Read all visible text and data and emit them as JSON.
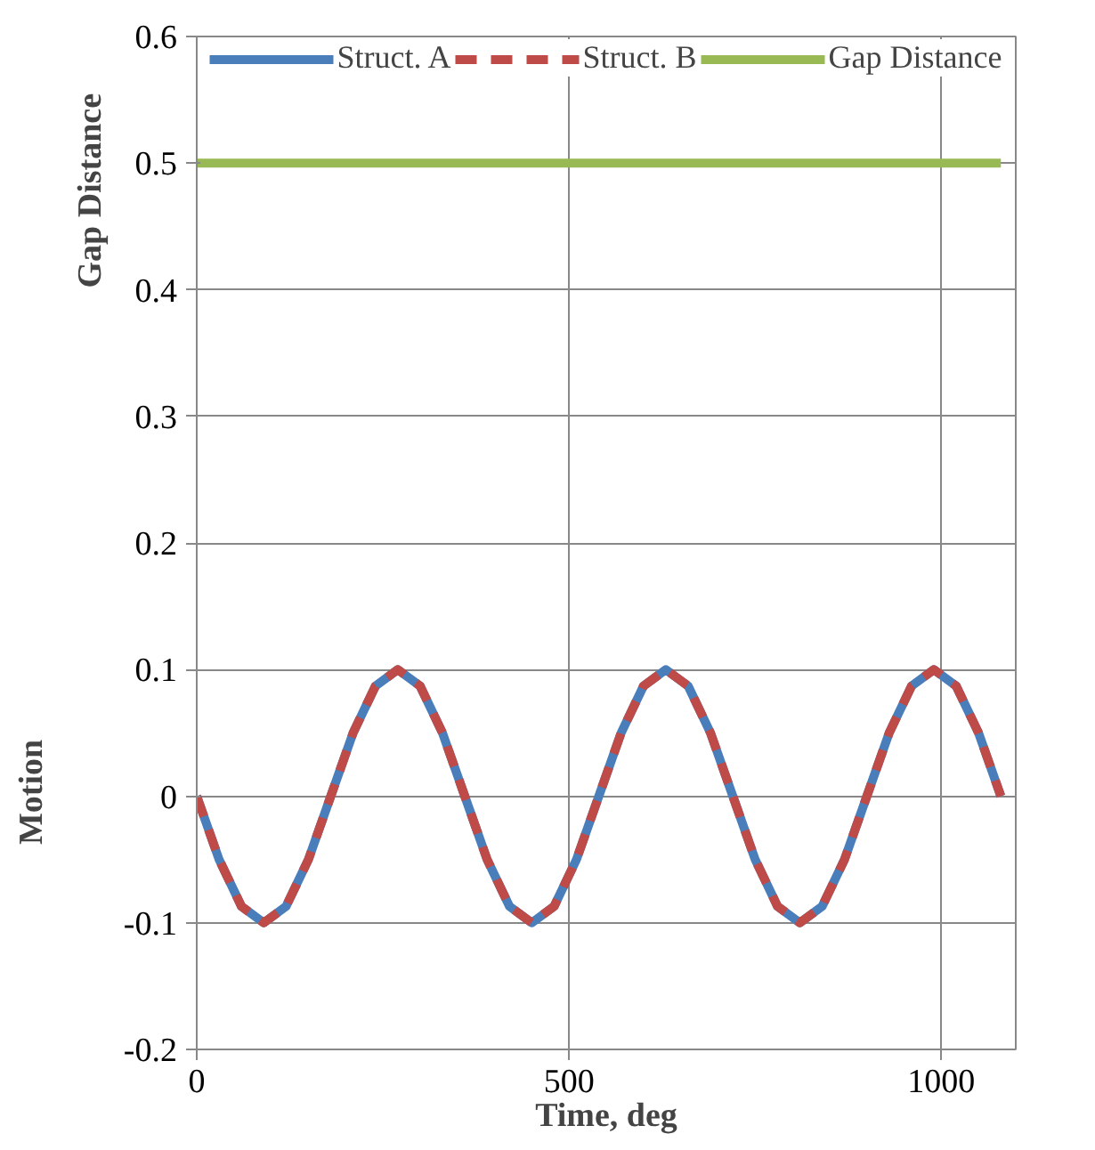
{
  "chart_data": {
    "type": "line",
    "xlabel": "Time, deg",
    "ylabel": "Gap Distance",
    "annotations": [
      "Motion"
    ],
    "x": [
      0,
      30,
      60,
      90,
      120,
      150,
      180,
      210,
      240,
      270,
      300,
      330,
      360,
      390,
      420,
      450,
      480,
      510,
      540,
      570,
      600,
      630,
      660,
      690,
      720,
      750,
      780,
      810,
      840,
      870,
      900,
      930,
      960,
      990,
      1020,
      1050,
      1080
    ],
    "series": [
      {
        "name": "Struct. A",
        "color": "#4a7ebb",
        "line_style": "solid",
        "values": [
          0,
          -0.05,
          -0.087,
          -0.1,
          -0.087,
          -0.05,
          0,
          0.05,
          0.087,
          0.1,
          0.087,
          0.05,
          0,
          -0.05,
          -0.087,
          -0.1,
          -0.087,
          -0.05,
          0,
          0.05,
          0.087,
          0.1,
          0.087,
          0.05,
          0,
          -0.05,
          -0.087,
          -0.1,
          -0.087,
          -0.05,
          0,
          0.05,
          0.087,
          0.1,
          0.087,
          0.05,
          0
        ]
      },
      {
        "name": "Struct. B",
        "color": "#be4b48",
        "line_style": "dashed",
        "values": [
          0,
          -0.05,
          -0.087,
          -0.1,
          -0.087,
          -0.05,
          0,
          0.05,
          0.087,
          0.1,
          0.087,
          0.05,
          0,
          -0.05,
          -0.087,
          -0.1,
          -0.087,
          -0.05,
          0,
          0.05,
          0.087,
          0.1,
          0.087,
          0.05,
          0,
          -0.05,
          -0.087,
          -0.1,
          -0.087,
          -0.05,
          0,
          0.05,
          0.087,
          0.1,
          0.087,
          0.05,
          0
        ]
      },
      {
        "name": "Gap Distance",
        "color": "#98b954",
        "line_style": "solid",
        "x": [
          0,
          1080
        ],
        "values": [
          0.5,
          0.5
        ]
      }
    ],
    "xlim": [
      0,
      1100
    ],
    "xticks": [
      0,
      500,
      1000
    ],
    "ylim": [
      -0.2,
      0.6
    ],
    "yticks": [
      -0.2,
      -0.1,
      0,
      0.1,
      0.2,
      0.3,
      0.4,
      0.5,
      0.6
    ],
    "grid": true,
    "legend": "top",
    "marker": "none"
  }
}
